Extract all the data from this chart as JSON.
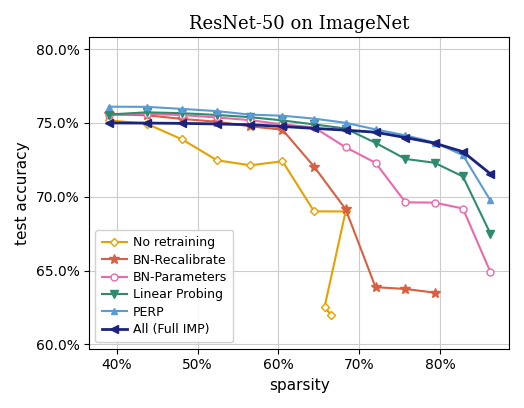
{
  "title": "ResNet-50 on ImageNet",
  "xlabel": "sparsity",
  "ylabel": "test accuracy",
  "xlim": [
    0.366,
    0.885
  ],
  "ylim": [
    0.597,
    0.808
  ],
  "yticks": [
    0.6,
    0.65,
    0.7,
    0.75,
    0.8
  ],
  "xticks": [
    0.4,
    0.5,
    0.6,
    0.7,
    0.8
  ],
  "series": [
    {
      "label": "No retraining",
      "color": "#e8a000",
      "marker": "D",
      "markersize": 4.5,
      "linewidth": 1.5,
      "markerfacecolor": "white",
      "x": [
        0.391,
        0.437,
        0.481,
        0.524,
        0.565,
        0.605,
        0.644,
        0.683,
        0.657,
        0.665
      ],
      "y": [
        0.7517,
        0.7495,
        0.7388,
        0.7247,
        0.7213,
        0.724,
        0.6901,
        0.69,
        0.6253,
        0.62
      ]
    },
    {
      "label": "BN-Recalibrate",
      "color": "#d95f42",
      "marker": "*",
      "markersize": 7,
      "linewidth": 1.5,
      "markerfacecolor": "#d95f42",
      "x": [
        0.391,
        0.437,
        0.481,
        0.524,
        0.565,
        0.605,
        0.644,
        0.683,
        0.72,
        0.757,
        0.793
      ],
      "y": [
        0.7558,
        0.7552,
        0.7527,
        0.7508,
        0.7477,
        0.7454,
        0.7204,
        0.6916,
        0.6387,
        0.6375,
        0.635
      ]
    },
    {
      "label": "BN-Parameters",
      "color": "#e86aab",
      "marker": "o",
      "markersize": 5,
      "linewidth": 1.5,
      "markerfacecolor": "white",
      "x": [
        0.391,
        0.437,
        0.481,
        0.524,
        0.565,
        0.605,
        0.644,
        0.683,
        0.72,
        0.757,
        0.793,
        0.828,
        0.862
      ],
      "y": [
        0.7554,
        0.7562,
        0.7553,
        0.7537,
        0.7519,
        0.749,
        0.747,
        0.7335,
        0.723,
        0.6962,
        0.696,
        0.692,
        0.649
      ]
    },
    {
      "label": "Linear Probing",
      "color": "#2e8b6e",
      "marker": "v",
      "markersize": 6,
      "linewidth": 1.5,
      "markerfacecolor": "#2e8b6e",
      "x": [
        0.391,
        0.437,
        0.481,
        0.524,
        0.565,
        0.605,
        0.644,
        0.683,
        0.72,
        0.757,
        0.793,
        0.828,
        0.862
      ],
      "y": [
        0.7557,
        0.7572,
        0.7566,
        0.7554,
        0.7539,
        0.7517,
        0.749,
        0.7462,
        0.7365,
        0.7256,
        0.723,
        0.7137,
        0.675
      ]
    },
    {
      "label": "PERP",
      "color": "#5b9bd5",
      "marker": "^",
      "markersize": 5,
      "linewidth": 1.5,
      "markerfacecolor": "#5b9bd5",
      "x": [
        0.391,
        0.437,
        0.481,
        0.524,
        0.565,
        0.605,
        0.644,
        0.683,
        0.72,
        0.757,
        0.793,
        0.828,
        0.862
      ],
      "y": [
        0.761,
        0.7609,
        0.7595,
        0.758,
        0.7556,
        0.7549,
        0.7529,
        0.7501,
        0.7456,
        0.7416,
        0.7367,
        0.7282,
        0.6975
      ]
    },
    {
      "label": "All (Full IMP)",
      "color": "#1a237e",
      "marker": "<",
      "markersize": 6,
      "linewidth": 2.0,
      "markerfacecolor": "#1a237e",
      "x": [
        0.391,
        0.437,
        0.481,
        0.524,
        0.565,
        0.605,
        0.644,
        0.683,
        0.72,
        0.757,
        0.793,
        0.828,
        0.862
      ],
      "y": [
        0.75,
        0.7499,
        0.7497,
        0.7493,
        0.7488,
        0.7476,
        0.7463,
        0.7451,
        0.7437,
        0.7401,
        0.7363,
        0.7305,
        0.7155
      ]
    }
  ]
}
